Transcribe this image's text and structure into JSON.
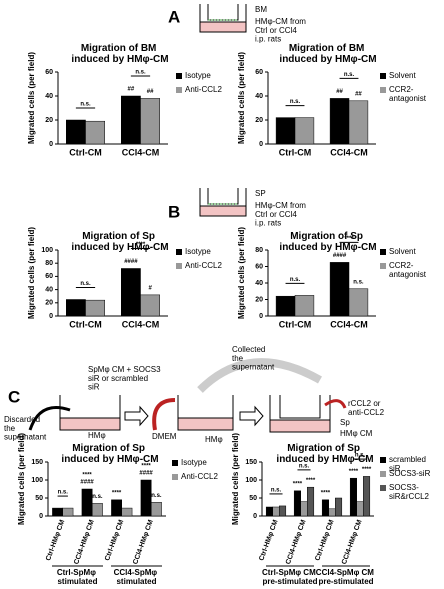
{
  "panel_labels": [
    "A",
    "B",
    "C"
  ],
  "diagrams": {
    "a": {
      "insert": "BM",
      "source": "HMφ-CM from Ctrl or CCl4 i.p. rats"
    },
    "b": {
      "insert": "SP",
      "source": "HMφ-CM from Ctrl or CCl4 i.p. rats"
    },
    "c": {
      "step1": "Discarded the supernatant",
      "step1_cells": "HMφ",
      "step2": "SpMφ CM + SOCS3 siR or scrambled siR",
      "medium": "DMEM",
      "step3": "Collected the supernatant",
      "step3_cells": "HMφ",
      "treatment": "rCCL2 or anti-CCL2",
      "insert": "Sp",
      "well": "HMφ CM"
    }
  },
  "chart_data": [
    {
      "type": "bar",
      "title": "Migration of BM induced by HMφ-CM",
      "y_label": "Migrated cells (per field)",
      "categories": [
        "Ctrl-CM",
        "CCl4-CM"
      ],
      "ylim": [
        0,
        60
      ],
      "yticks": [
        0,
        20,
        40,
        60
      ],
      "series": [
        {
          "name": "Isotype",
          "color": "#000000",
          "values": [
            20,
            40
          ]
        },
        {
          "name": "Anti-CCL2",
          "color": "#999999",
          "values": [
            19,
            38
          ]
        }
      ],
      "annotations": [
        {
          "text": "n.s.",
          "category": 0
        },
        {
          "text": "n.s.",
          "category": 1
        },
        {
          "text": "##",
          "category": 1,
          "series": 0
        },
        {
          "text": "##",
          "category": 1,
          "series": 1
        }
      ]
    },
    {
      "type": "bar",
      "title": "Migration of BM induced by HMφ-CM",
      "y_label": "Migrated cells (per field)",
      "categories": [
        "Ctrl-CM",
        "CCl4-CM"
      ],
      "ylim": [
        0,
        60
      ],
      "yticks": [
        0,
        20,
        40,
        60
      ],
      "series": [
        {
          "name": "Solvent",
          "color": "#000000",
          "values": [
            22,
            38
          ]
        },
        {
          "name": "CCR2-antagonist",
          "color": "#999999",
          "values": [
            22,
            36
          ]
        }
      ],
      "annotations": [
        {
          "text": "n.s.",
          "category": 0
        },
        {
          "text": "n.s.",
          "category": 1
        },
        {
          "text": "##",
          "category": 1,
          "series": 0
        },
        {
          "text": "##",
          "category": 1,
          "series": 1
        }
      ]
    },
    {
      "type": "bar",
      "title": "Migration of Sp induced by HMφ-CM",
      "y_label": "Migrated cells (per field)",
      "categories": [
        "Ctrl-CM",
        "CCl4-CM"
      ],
      "ylim": [
        0,
        100
      ],
      "yticks": [
        0,
        20,
        40,
        60,
        80,
        100
      ],
      "series": [
        {
          "name": "Isotype",
          "color": "#000000",
          "values": [
            25,
            72
          ]
        },
        {
          "name": "Anti-CCL2",
          "color": "#999999",
          "values": [
            24,
            32
          ]
        }
      ],
      "annotations": [
        {
          "text": "n.s.",
          "category": 0
        },
        {
          "text": "****",
          "category": 1
        },
        {
          "text": "####",
          "category": 1,
          "series": 0
        },
        {
          "text": "#",
          "category": 1,
          "series": 1
        }
      ]
    },
    {
      "type": "bar",
      "title": "Migration of Sp induced by HMφ-CM",
      "y_label": "Migrated cells (per field)",
      "categories": [
        "Ctrl-CM",
        "CCl4-CM"
      ],
      "ylim": [
        0,
        80
      ],
      "yticks": [
        0,
        20,
        40,
        60,
        80
      ],
      "series": [
        {
          "name": "Solvent",
          "color": "#000000",
          "values": [
            24,
            65
          ]
        },
        {
          "name": "CCR2-antagonist",
          "color": "#999999",
          "values": [
            25,
            33
          ]
        }
      ],
      "annotations": [
        {
          "text": "n.s.",
          "category": 0
        },
        {
          "text": "****",
          "category": 1
        },
        {
          "text": "####",
          "category": 1,
          "series": 0
        },
        {
          "text": "n.s.",
          "category": 1,
          "series": 1
        }
      ]
    },
    {
      "type": "bar",
      "title": "Migration of Sp induced by HMφ-CM",
      "y_label": "Migrated cells (per field)",
      "categories": [
        "Ctrl-HMφ CM",
        "CCl4-HMφ CM",
        "Ctrl-HMφ CM",
        "CCl4-HMφ CM"
      ],
      "groups": [
        "Ctrl-SpMφ stimulated",
        "CCl4-SpMφ stimulated"
      ],
      "ylim": [
        0,
        150
      ],
      "yticks": [
        0,
        50,
        100,
        150
      ],
      "series": [
        {
          "name": "Isotype",
          "color": "#000000",
          "values": [
            22,
            75,
            45,
            100
          ]
        },
        {
          "name": "Anti-CCL2",
          "color": "#999999",
          "values": [
            22,
            35,
            22,
            38
          ]
        }
      ],
      "annotations": [
        {
          "text": "n.s.",
          "category": 0
        },
        {
          "text": "####",
          "category": 1,
          "series": 0
        },
        {
          "text": "****",
          "category": 1,
          "series": 0
        },
        {
          "text": "n.s.",
          "category": 1,
          "series": 1
        },
        {
          "text": "****",
          "category": 2,
          "series": 0
        },
        {
          "text": "####",
          "category": 3,
          "series": 0
        },
        {
          "text": "****",
          "category": 3,
          "series": 0
        },
        {
          "text": "n.s.",
          "category": 3,
          "series": 1
        }
      ]
    },
    {
      "type": "bar",
      "title": "Migration of Sp induced by HMφ-CM",
      "y_label": "Migrated cells (per field)",
      "categories": [
        "Ctrl-HMφ CM",
        "CCl4-HMφ CM",
        "Ctrl-HMφ CM",
        "CCl4-HMφ CM"
      ],
      "groups": [
        "Ctrl-SpMφ CM pre-stimulated",
        "CCl4-SpMφ CM pre-stimulated"
      ],
      "ylim": [
        0,
        150
      ],
      "yticks": [
        0,
        50,
        100,
        150
      ],
      "series": [
        {
          "name": "scrambled siR",
          "color": "#000000",
          "values": [
            25,
            70,
            45,
            105
          ]
        },
        {
          "name": "SOCS3-siR",
          "color": "#999999",
          "values": [
            25,
            40,
            20,
            40
          ]
        },
        {
          "name": "SOCS3-siR&rCCL2",
          "color": "#555555",
          "values": [
            28,
            80,
            50,
            110
          ]
        }
      ],
      "annotations": [
        {
          "text": "n.s.",
          "category": 0
        },
        {
          "text": "****",
          "category": 1,
          "series": 0
        },
        {
          "text": "****",
          "category": 1,
          "series": 2
        },
        {
          "text": "n.s.",
          "category": 1
        },
        {
          "text": "****",
          "category": 2,
          "series": 0
        },
        {
          "text": "****",
          "category": 3,
          "series": 0
        },
        {
          "text": "****",
          "category": 3,
          "series": 2
        },
        {
          "text": "n.s.",
          "category": 3
        }
      ]
    }
  ]
}
